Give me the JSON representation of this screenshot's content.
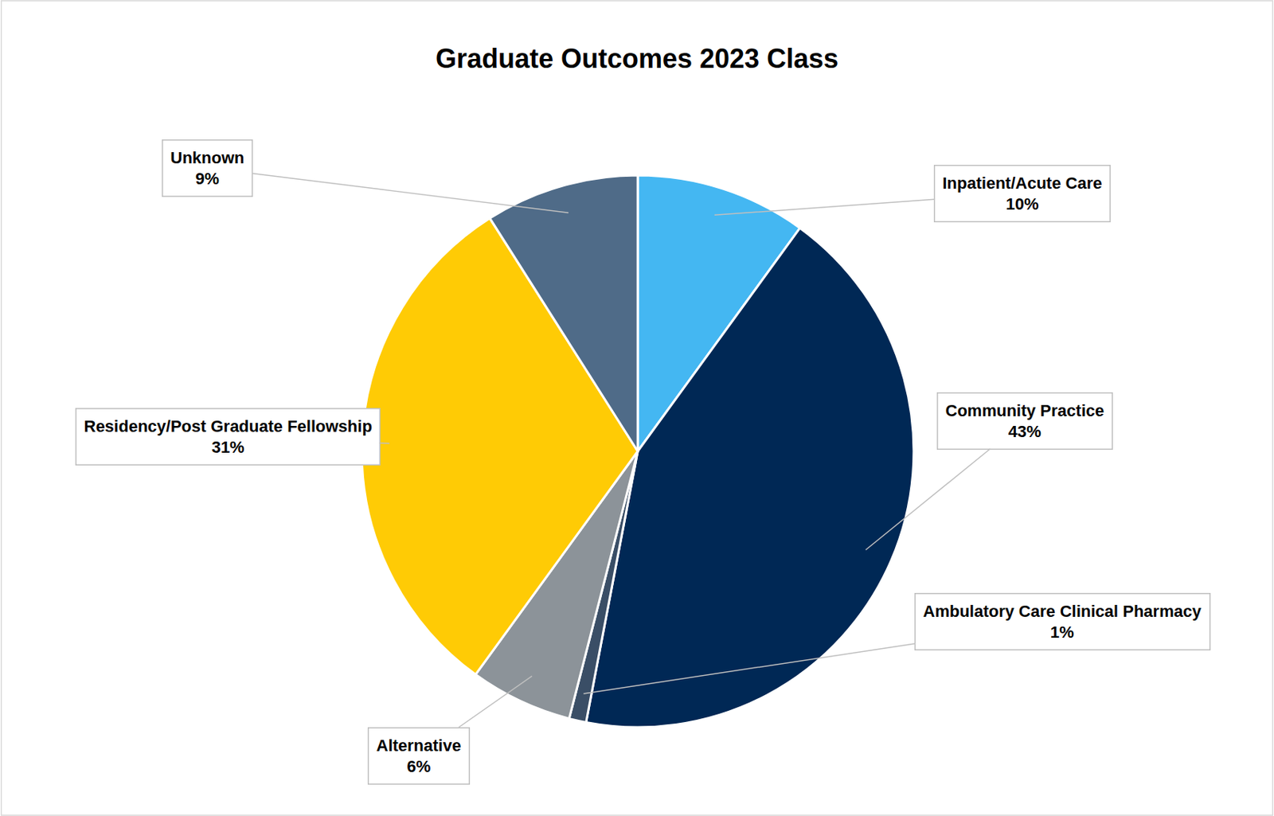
{
  "chart_data": {
    "type": "pie",
    "title": "Graduate Outcomes 2023 Class",
    "categories": [
      "Inpatient/Acute Care",
      "Community Practice",
      "Ambulatory Care Clinical Pharmacy",
      "Alternative",
      "Residency/Post Graduate Fellowship",
      "Unknown"
    ],
    "values": [
      10,
      43,
      1,
      6,
      31,
      9
    ],
    "value_labels": [
      "10%",
      "43%",
      "1%",
      "6%",
      "31%",
      "9%"
    ],
    "colors": [
      "#44B7F2",
      "#002855",
      "#3A4E66",
      "#8C9399",
      "#FFCB05",
      "#4F6B88"
    ],
    "data_labels": true
  }
}
